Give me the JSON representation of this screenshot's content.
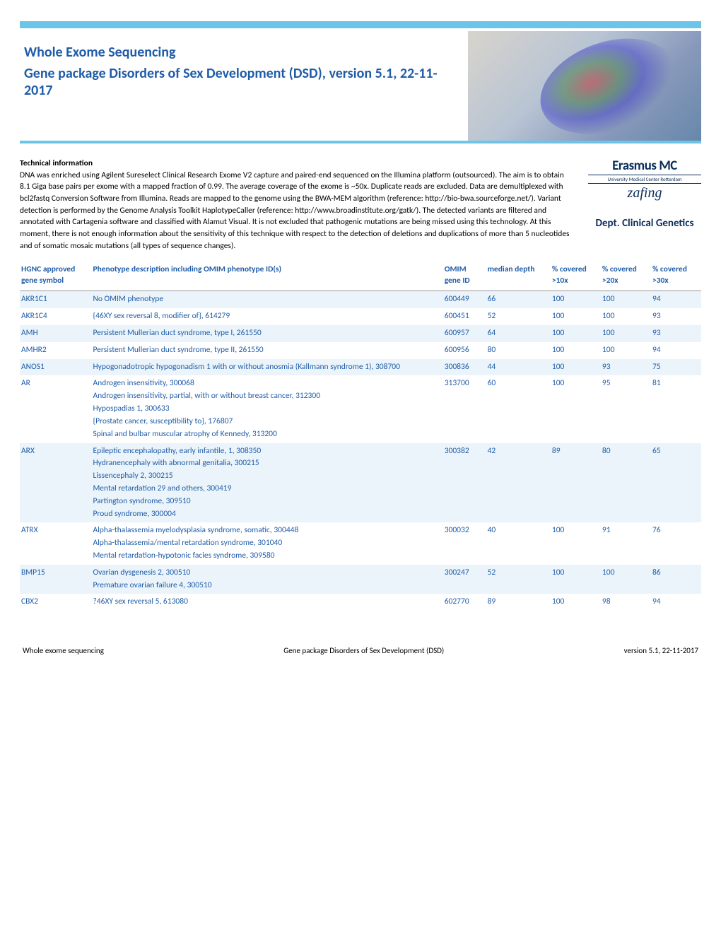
{
  "header": {
    "title1": "Whole Exome Sequencing",
    "title2": "Gene package Disorders of Sex Development (DSD), version 5.1, 22-11-2017"
  },
  "tech": {
    "heading": "Technical information",
    "body": "DNA was enriched using Agilent Sureselect Clinical Research Exome V2 capture and paired-end sequenced on the Illumina platform (outsourced). The aim is to obtain 8.1 Giga base pairs per exome with a mapped fraction of 0.99. The average coverage of the exome is ~50x. Duplicate reads are excluded. Data are demultiplexed with bcl2fastq Conversion Software from Illumina. Reads are mapped to the genome using the BWA-MEM algorithm (reference: http://bio-bwa.sourceforge.net/). Variant detection is performed by the Genome Analysis Toolkit HaplotypeCaller (reference: http://www.broadinstitute.org/gatk/). The detected variants are filtered and annotated with Cartagenia software and classified with Alamut Visual. It is not excluded that pathogenic mutations are being missed using this technology. At this moment, there is not enough information about the sensitivity of this technique with respect to the detection of deletions and duplications of more than 5 nucleotides and of somatic mosaic mutations (all types of sequence changes)."
  },
  "logo": {
    "main": "Erasmus MC",
    "sub": "University Medical Center Rotterdam",
    "script": "zafing",
    "dept": "Dept. Clinical Genetics"
  },
  "columns": {
    "gene": "HGNC approved gene symbol",
    "pheno": "Phenotype description including OMIM phenotype ID(s)",
    "omim": "OMIM gene ID",
    "depth": "median depth",
    "c10": "% covered >10x",
    "c20": "% covered >20x",
    "c30": "% covered >30x"
  },
  "rows": [
    {
      "shade": true,
      "gene": "AKR1C1",
      "pheno": [
        "No OMIM phenotype"
      ],
      "omim": "600449",
      "depth": "66",
      "c10": "100",
      "c20": "100",
      "c30": "94"
    },
    {
      "shade": false,
      "gene": "AKR1C4",
      "pheno": [
        "{46XY sex reversal 8, modifier of}, 614279"
      ],
      "omim": "600451",
      "depth": "52",
      "c10": "100",
      "c20": "100",
      "c30": "93"
    },
    {
      "shade": true,
      "gene": "AMH",
      "pheno": [
        "Persistent Mullerian duct syndrome, type I, 261550"
      ],
      "omim": "600957",
      "depth": "64",
      "c10": "100",
      "c20": "100",
      "c30": "93"
    },
    {
      "shade": false,
      "gene": "AMHR2",
      "pheno": [
        "Persistent Mullerian duct syndrome, type II, 261550"
      ],
      "omim": "600956",
      "depth": "80",
      "c10": "100",
      "c20": "100",
      "c30": "94"
    },
    {
      "shade": true,
      "gene": "ANOS1",
      "pheno": [
        "Hypogonadotropic hypogonadism 1 with or without anosmia (Kallmann syndrome 1), 308700"
      ],
      "omim": "300836",
      "depth": "44",
      "c10": "100",
      "c20": "93",
      "c30": "75"
    },
    {
      "shade": false,
      "gene": "AR",
      "pheno": [
        "Androgen insensitivity, 300068",
        "Androgen insensitivity, partial, with or without breast cancer, 312300",
        "Hypospadias 1, 300633",
        "{Prostate cancer, susceptibility to}, 176807",
        "Spinal and bulbar muscular atrophy of Kennedy, 313200"
      ],
      "omim": "313700",
      "depth": "60",
      "c10": "100",
      "c20": "95",
      "c30": "81"
    },
    {
      "shade": true,
      "gene": "ARX",
      "pheno": [
        "Epileptic encephalopathy, early infantile, 1, 308350",
        "Hydranencephaly with abnormal genitalia, 300215",
        "Lissencephaly 2, 300215",
        "Mental retardation 29 and others, 300419",
        "Partington syndrome, 309510",
        "Proud syndrome, 300004"
      ],
      "omim": "300382",
      "depth": "42",
      "c10": "89",
      "c20": "80",
      "c30": "65"
    },
    {
      "shade": false,
      "gene": "ATRX",
      "pheno": [
        "Alpha-thalassemia myelodysplasia syndrome, somatic, 300448",
        "Alpha-thalassemia/mental retardation syndrome, 301040",
        "Mental retardation-hypotonic facies syndrome, 309580"
      ],
      "omim": "300032",
      "depth": "40",
      "c10": "100",
      "c20": "91",
      "c30": "76"
    },
    {
      "shade": true,
      "gene": "BMP15",
      "pheno": [
        "Ovarian dysgenesis 2, 300510",
        "Premature ovarian failure 4, 300510"
      ],
      "omim": "300247",
      "depth": "52",
      "c10": "100",
      "c20": "100",
      "c30": "86"
    },
    {
      "shade": false,
      "gene": "CBX2",
      "pheno": [
        "?46XY sex reversal 5, 613080"
      ],
      "omim": "602770",
      "depth": "89",
      "c10": "100",
      "c20": "98",
      "c30": "94"
    }
  ],
  "footer": {
    "left": "Whole exome sequencing",
    "center": "Gene package Disorders of Sex Development (DSD)",
    "right": "version 5.1, 22-11-2017"
  }
}
